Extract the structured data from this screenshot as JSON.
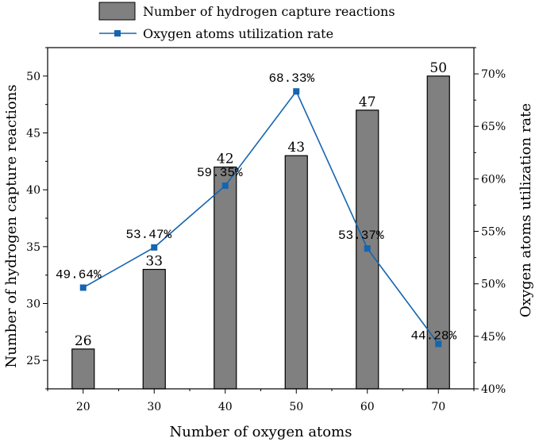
{
  "chart_data": {
    "type": "bar+line",
    "categories": [
      "20",
      "30",
      "40",
      "50",
      "60",
      "70"
    ],
    "x": [
      20,
      30,
      40,
      50,
      60,
      70
    ],
    "series": [
      {
        "name": "Number of hydrogen capture reactions",
        "type": "bar",
        "axis": "left",
        "values": [
          26,
          33,
          42,
          43,
          47,
          50
        ],
        "value_labels": [
          "26",
          "33",
          "42",
          "43",
          "47",
          "50"
        ],
        "color": "#808080"
      },
      {
        "name": "Oxygen atoms utilization rate",
        "type": "line",
        "axis": "right",
        "values": [
          49.64,
          53.47,
          59.35,
          68.33,
          53.37,
          44.28
        ],
        "value_labels": [
          "49.64%",
          "53.47%",
          "59.35%",
          "68.33%",
          "53.37%",
          "44.28%"
        ],
        "color": "#1565b0"
      }
    ],
    "xlabel": "Number of oxygen atoms",
    "ylabel": "Number of hydrogen capture reactions",
    "y2label": "Oxygen atoms utilization rate",
    "xlim": [
      15,
      75
    ],
    "ylim": [
      22.5,
      52.5
    ],
    "y2lim": [
      40,
      72.5
    ],
    "yticks": [
      "25",
      "30",
      "35",
      "40",
      "45",
      "50"
    ],
    "y2ticks": [
      "40%",
      "45%",
      "50%",
      "55%",
      "60%",
      "65%",
      "70%"
    ],
    "grid": false,
    "legend_position": "top-left"
  }
}
